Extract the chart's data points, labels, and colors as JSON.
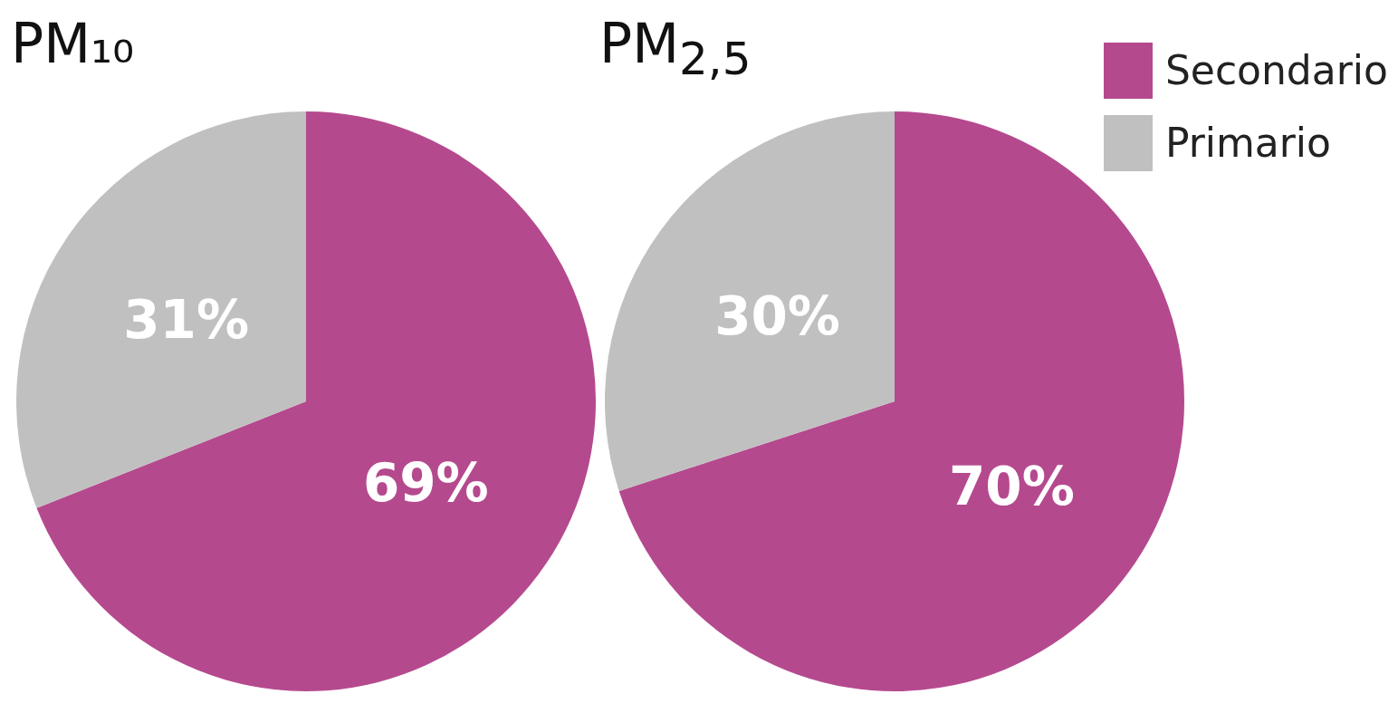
{
  "chart_data": [
    {
      "type": "pie",
      "title": "PM₁₀",
      "categories": [
        null,
        null
      ],
      "values": [
        69,
        31
      ],
      "colors": [
        "#b5498e",
        "#c0c0c0"
      ],
      "value_labels": [
        "69%",
        "31%"
      ],
      "legend": false
    },
    {
      "type": "pie",
      "title": "PM$_{2,5}$",
      "categories": [
        "Secondario",
        "Primario"
      ],
      "values": [
        70,
        30
      ],
      "colors": [
        "#b5498e",
        "#c0c0c0"
      ],
      "value_labels": [
        "70%",
        "30%"
      ],
      "legend": "top right"
    }
  ]
}
